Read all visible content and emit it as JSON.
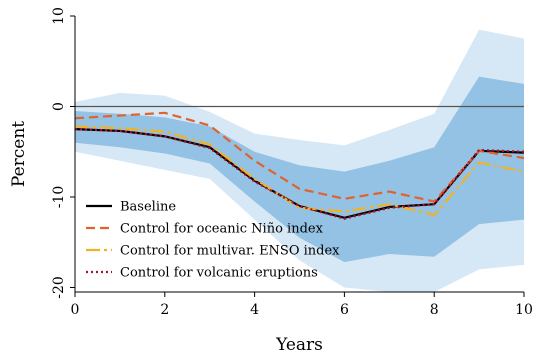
{
  "chart_data": {
    "type": "line",
    "xlabel": "Years",
    "ylabel": "Percent",
    "xlim": [
      0,
      10
    ],
    "ylim": [
      -20.5,
      10
    ],
    "xticks": [
      0,
      2,
      4,
      6,
      8,
      10
    ],
    "yticks": [
      10,
      0,
      -10,
      -20
    ],
    "xtick_labels": [
      "0",
      "2",
      "4",
      "6",
      "8",
      "10"
    ],
    "ytick_labels": [
      "10",
      "0",
      "-10",
      "-20"
    ],
    "reference_line": 0,
    "legend_position": "lower-left",
    "x": [
      0,
      1,
      2,
      3,
      4,
      5,
      6,
      7,
      8,
      9,
      10
    ],
    "bands": [
      {
        "level": "outer",
        "color": "#d6e8f6",
        "upper": [
          0.5,
          1.5,
          1.2,
          -0.6,
          -3.0,
          -3.7,
          -4.3,
          -2.6,
          -0.8,
          8.5,
          7.5
        ],
        "lower": [
          -5.0,
          -6.0,
          -7.0,
          -8.0,
          -12.5,
          -17.0,
          -20.0,
          -20.5,
          -20.5,
          -18.0,
          -17.5
        ]
      },
      {
        "level": "inner",
        "color": "#94c2e4",
        "upper": [
          -0.5,
          -0.8,
          -1.2,
          -2.2,
          -5.0,
          -6.5,
          -7.2,
          -6.0,
          -4.5,
          3.3,
          2.5
        ],
        "lower": [
          -4.0,
          -4.5,
          -5.2,
          -6.3,
          -10.5,
          -14.5,
          -17.2,
          -16.3,
          -16.6,
          -13.0,
          -12.5
        ]
      }
    ],
    "series": [
      {
        "name": "Baseline",
        "color": "#000000",
        "style": "solid",
        "values": [
          -2.5,
          -2.7,
          -3.3,
          -4.5,
          -8.2,
          -11.0,
          -12.3,
          -11.1,
          -10.8,
          -4.9,
          -5.1
        ]
      },
      {
        "name": "Control for oceanic Niño index",
        "color": "#e0622f",
        "style": "dashed",
        "values": [
          -1.3,
          -1.0,
          -0.7,
          -2.1,
          -6.0,
          -9.1,
          -10.2,
          -9.4,
          -10.5,
          -4.9,
          -5.7
        ]
      },
      {
        "name": "Control for multivar. ENSO index",
        "color": "#f0b323",
        "style": "dashdot",
        "values": [
          -2.2,
          -2.4,
          -2.8,
          -4.2,
          -8.0,
          -11.2,
          -11.6,
          -10.8,
          -12.0,
          -6.2,
          -7.2
        ]
      },
      {
        "name": "Control for volcanic eruptions",
        "color": "#b0102a",
        "style": "dotted",
        "values": [
          -2.5,
          -2.7,
          -3.3,
          -4.6,
          -8.3,
          -11.0,
          -12.4,
          -11.2,
          -10.8,
          -4.8,
          -5.0
        ]
      }
    ]
  }
}
